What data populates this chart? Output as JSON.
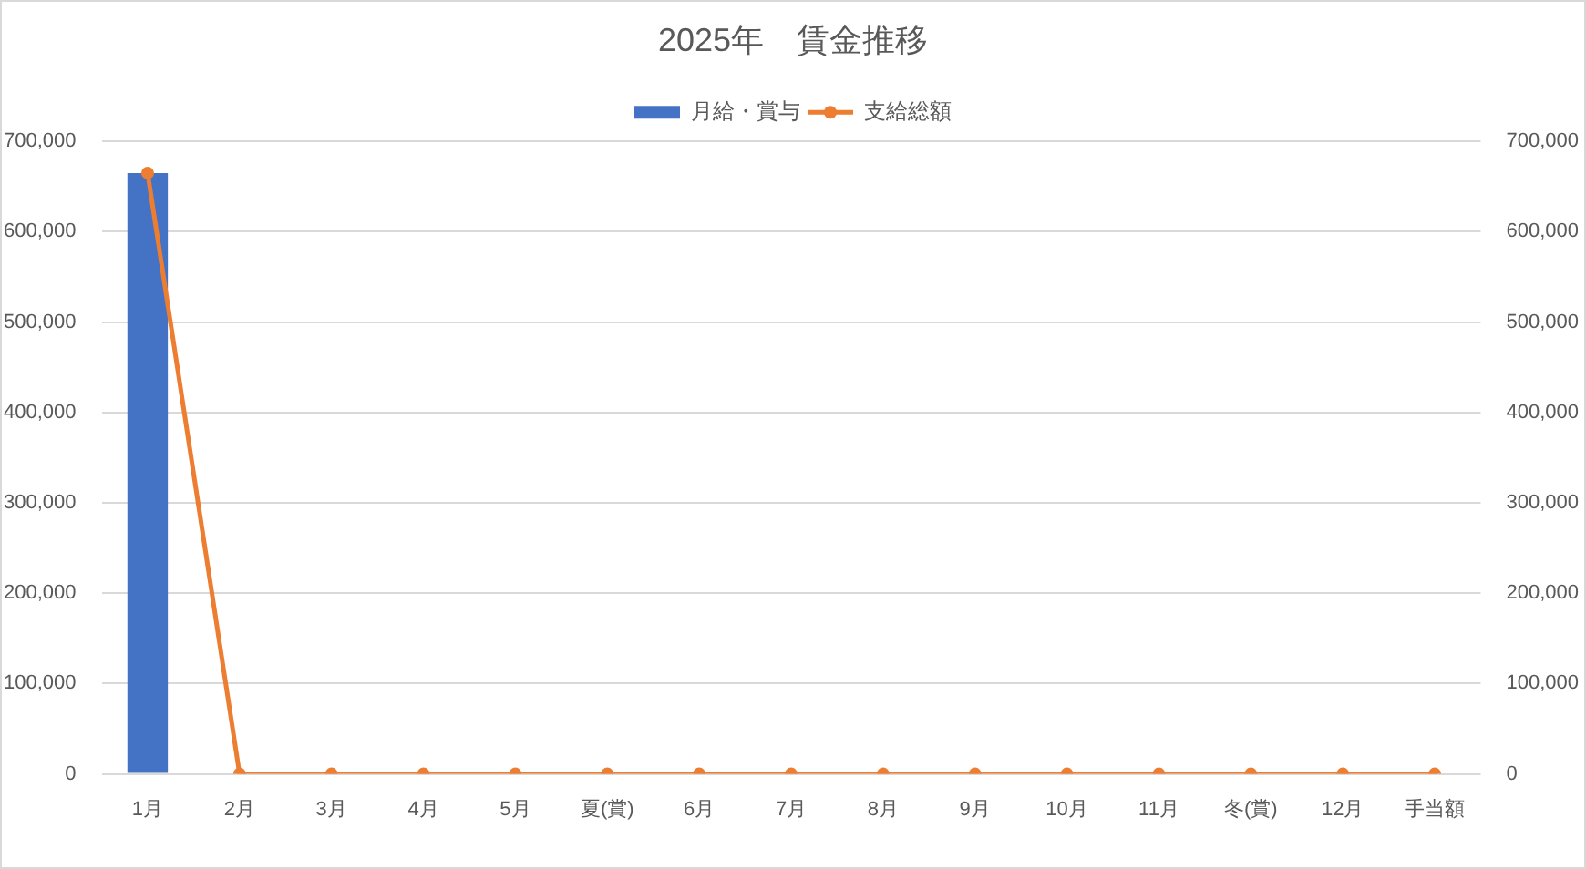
{
  "chart_data": {
    "type": "bar",
    "title": "2025年　賃金推移",
    "categories": [
      "1月",
      "2月",
      "3月",
      "4月",
      "5月",
      "夏(賞)",
      "6月",
      "7月",
      "8月",
      "9月",
      "10月",
      "11月",
      "冬(賞)",
      "12月",
      "手当額"
    ],
    "series": [
      {
        "name": "月給・賞与",
        "color": "#4472c4",
        "values": [
          665000,
          0,
          0,
          0,
          0,
          0,
          0,
          0,
          0,
          0,
          0,
          0,
          0,
          0,
          0
        ]
      },
      {
        "name": "支給総額",
        "type": "line",
        "axis": "y2",
        "color": "#ed7d31",
        "values": [
          665000,
          0,
          0,
          0,
          0,
          0,
          0,
          0,
          0,
          0,
          0,
          0,
          0,
          0,
          0
        ]
      }
    ],
    "ylim": [
      0,
      700000
    ],
    "yticks": [
      0,
      {
        "value": 100000,
        "label": "100,000"
      },
      {
        "value": 200000,
        "label": "200,000"
      },
      {
        "value": 300000,
        "label": "300,000"
      },
      {
        "value": 400000,
        "label": "400,000"
      },
      {
        "value": 500000,
        "label": "500,000"
      },
      {
        "value": 600000,
        "label": "600,000"
      },
      {
        "value": 700000,
        "label": "700,000"
      }
    ],
    "y2lim": [
      0,
      700000
    ],
    "y2ticks": [
      0,
      {
        "value": 100000,
        "label": "100,000"
      },
      {
        "value": 200000,
        "label": "200,000"
      },
      {
        "value": 300000,
        "label": "300,000"
      },
      {
        "value": 400000,
        "label": "400,000"
      },
      {
        "value": 500000,
        "label": "500,000"
      },
      {
        "value": 600000,
        "label": "600,000"
      },
      {
        "value": 700000,
        "label": "700,000"
      }
    ],
    "grid": "y",
    "legend": "top",
    "marker": "circle",
    "line_style": "solid"
  }
}
